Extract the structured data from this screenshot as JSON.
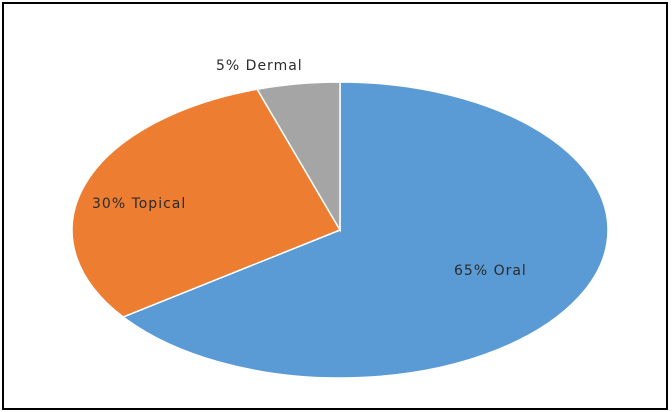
{
  "chart_data": {
    "type": "pie",
    "title": "",
    "slices": [
      {
        "label": "Oral",
        "value": 65,
        "display": "65%  Oral",
        "color": "#5b9bd5"
      },
      {
        "label": "Topical",
        "value": 30,
        "display": "30%  Topical",
        "color": "#ed7d31"
      },
      {
        "label": "Dermal",
        "value": 5,
        "display": "5% Dermal",
        "color": "#a5a5a5"
      }
    ],
    "start_angle_deg": 0,
    "direction": "clockwise"
  }
}
